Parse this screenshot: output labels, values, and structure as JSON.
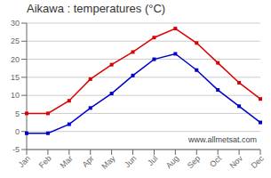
{
  "chart_data": {
    "type": "line",
    "title": "Aikawa : temperatures (°C)",
    "categories": [
      "Jan",
      "Feb",
      "Mar",
      "Apr",
      "May",
      "Jun",
      "Jul",
      "Aug",
      "Sep",
      "Oct",
      "Nov",
      "Dec"
    ],
    "series": [
      {
        "color": "#dd0000",
        "marker": "square",
        "values": [
          5,
          5,
          8.5,
          14.5,
          18.5,
          22,
          26,
          28.5,
          24.5,
          19,
          13.5,
          9
        ]
      },
      {
        "color": "#0000cc",
        "marker": "square",
        "values": [
          -0.5,
          -0.5,
          2,
          6.5,
          10.5,
          15.5,
          20,
          21.5,
          17,
          11.5,
          7,
          2.5
        ]
      }
    ],
    "ylim": [
      -5,
      30
    ],
    "yticks": [
      -5,
      0,
      5,
      10,
      15,
      20,
      25,
      30
    ],
    "grid": true,
    "annotations": [
      "www.allmetsat.com"
    ]
  }
}
